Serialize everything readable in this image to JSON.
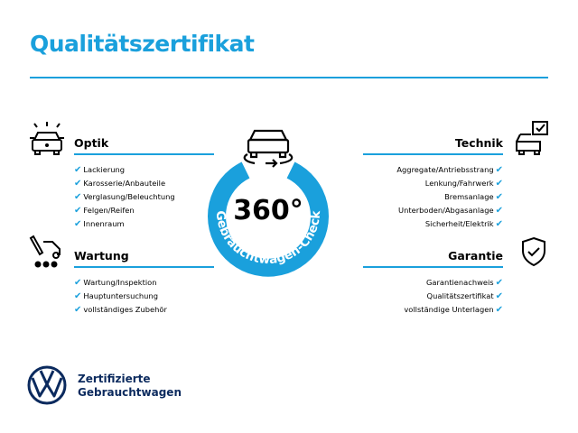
{
  "title": "Qualitätszertifikat",
  "center": {
    "value": "360°",
    "ring_text": "Gebrauchtwagen-Check"
  },
  "sections": {
    "optik": {
      "title": "Optik",
      "items": [
        "Lackierung",
        "Karosserie/Anbauteile",
        "Verglasung/Beleuchtung",
        "Felgen/Reifen",
        "Innenraum"
      ]
    },
    "wartung": {
      "title": "Wartung",
      "items": [
        "Wartung/Inspektion",
        "Hauptuntersuchung",
        "vollständiges Zubehör"
      ]
    },
    "technik": {
      "title": "Technik",
      "items": [
        "Aggregate/Antriebsstrang",
        "Lenkung/Fahrwerk",
        "Bremsanlage",
        "Unterboden/Abgasanlage",
        "Sicherheit/Elektrik"
      ]
    },
    "garantie": {
      "title": "Garantie",
      "items": [
        "Garantienachweis",
        "Qualitätszertifikat",
        "vollständige Unterlagen"
      ]
    }
  },
  "check_glyph": "✔",
  "footer": {
    "line1": "Zertifizierte",
    "line2": "Gebrauchtwagen",
    "logo_text": "VW"
  },
  "colors": {
    "accent": "#1aa0dc",
    "brand": "#0b2a5e"
  }
}
